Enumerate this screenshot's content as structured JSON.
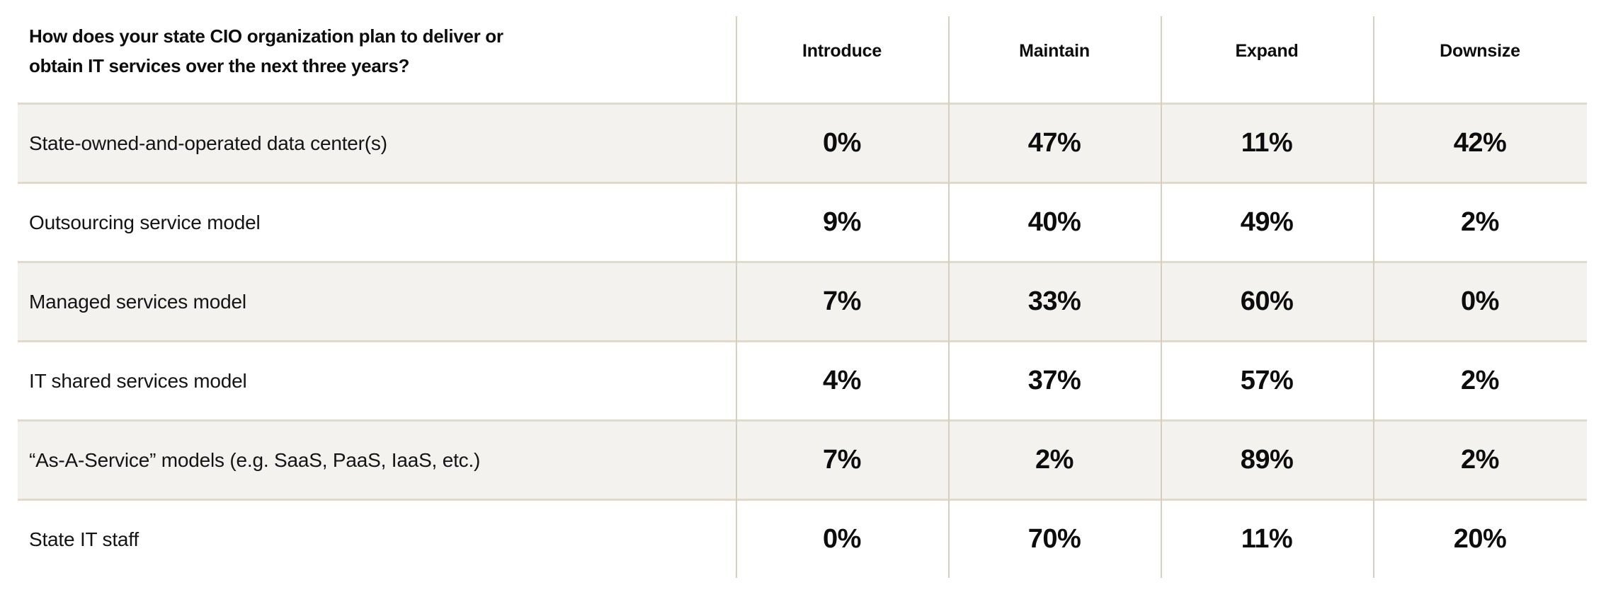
{
  "chart_data": {
    "type": "table",
    "title": "How does your state CIO organization plan to deliver or obtain IT services over the next three years?",
    "columns": [
      "Introduce",
      "Maintain",
      "Expand",
      "Downsize"
    ],
    "rows": [
      {
        "label": "State-owned-and-operated data center(s)",
        "values": [
          "0%",
          "47%",
          "11%",
          "42%"
        ]
      },
      {
        "label": "Outsourcing service model",
        "values": [
          "9%",
          "40%",
          "49%",
          "2%"
        ]
      },
      {
        "label": "Managed services model",
        "values": [
          "7%",
          "33%",
          "60%",
          "0%"
        ]
      },
      {
        "label": "IT shared services model",
        "values": [
          "4%",
          "37%",
          "57%",
          "2%"
        ]
      },
      {
        "label": "“As-A-Service” models (e.g. SaaS, PaaS, IaaS, etc.)",
        "values": [
          "7%",
          "2%",
          "89%",
          "2%"
        ]
      },
      {
        "label": "State IT staff",
        "values": [
          "0%",
          "70%",
          "11%",
          "20%"
        ]
      }
    ],
    "layout": {
      "alternating_row_shading": "rows 1,3,5 shaded",
      "grid": "vertical dividers between value columns, horizontal dividers between rows"
    }
  },
  "colors": {
    "background": "#ffffff",
    "row_alt_background": "#f4f2ef",
    "horizontal_divider": "#e0dacc",
    "vertical_divider": "#d6cfbf",
    "text": "#0d0d0d"
  }
}
